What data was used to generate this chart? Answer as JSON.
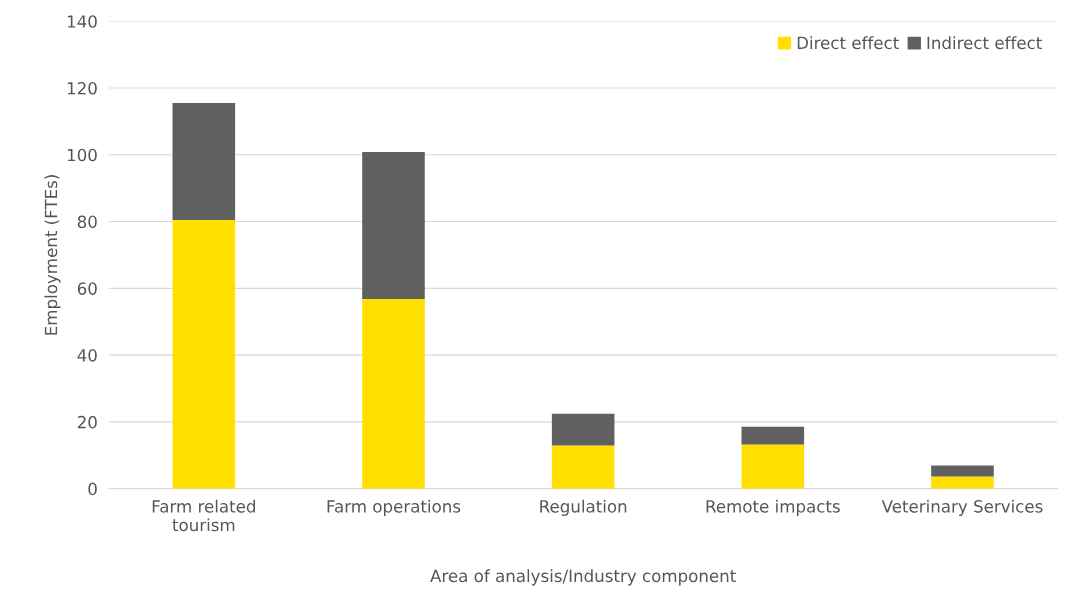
{
  "chart_data": {
    "type": "bar",
    "stacked": true,
    "xlabel": "Area of analysis/Industry component",
    "ylabel": "Employment (FTEs)",
    "categories": [
      "Farm related\ntourism",
      "Farm operations",
      "Regulation",
      "Remote impacts",
      "Veterinary Services"
    ],
    "series": [
      {
        "name": "Direct effect",
        "color": "#ffe000",
        "values": [
          80.5,
          56.8,
          12.9,
          13.2,
          3.6
        ]
      },
      {
        "name": "Indirect effect",
        "color": "#606060",
        "values": [
          35,
          44,
          9.5,
          5.3,
          3.3
        ]
      }
    ],
    "ylim": [
      0,
      140
    ],
    "yticks": [
      0,
      20,
      40,
      60,
      80,
      100,
      120,
      140
    ],
    "grid": "y",
    "legend": "top right"
  }
}
